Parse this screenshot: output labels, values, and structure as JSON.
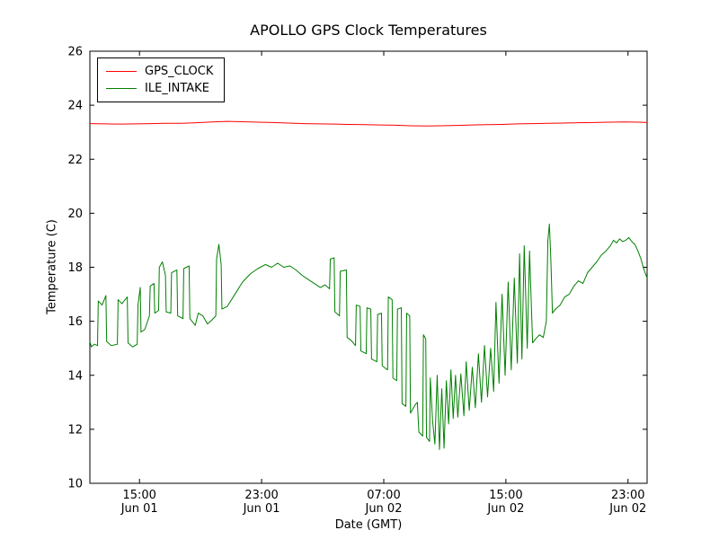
{
  "figure": {
    "title": "APOLLO GPS Clock Temperatures",
    "xlabel": "Date (GMT)",
    "ylabel": "Temperature (C)"
  },
  "chart_data": {
    "type": "line",
    "title": "APOLLO GPS Clock Temperatures",
    "xlabel": "Date (GMT)",
    "ylabel": "Temperature (C)",
    "xlim": [
      0,
      36.5
    ],
    "ylim": [
      10,
      26
    ],
    "grid": false,
    "legend_position": "upper left",
    "yticks": [
      10,
      12,
      14,
      16,
      18,
      20,
      22,
      24,
      26
    ],
    "xticks": [
      {
        "pos": 3.25,
        "time": "15:00",
        "date": "Jun 01"
      },
      {
        "pos": 11.25,
        "time": "23:00",
        "date": "Jun 01"
      },
      {
        "pos": 19.25,
        "time": "07:00",
        "date": "Jun 02"
      },
      {
        "pos": 27.25,
        "time": "15:00",
        "date": "Jun 02"
      },
      {
        "pos": 35.25,
        "time": "23:00",
        "date": "Jun 02"
      }
    ],
    "series": [
      {
        "name": "GPS_CLOCK",
        "color": "#ff0000",
        "points": [
          [
            0,
            23.32
          ],
          [
            1,
            23.31
          ],
          [
            2,
            23.3
          ],
          [
            3,
            23.31
          ],
          [
            4,
            23.32
          ],
          [
            5,
            23.33
          ],
          [
            6,
            23.33
          ],
          [
            7,
            23.35
          ],
          [
            8,
            23.38
          ],
          [
            9,
            23.4
          ],
          [
            10,
            23.39
          ],
          [
            11,
            23.37
          ],
          [
            12,
            23.36
          ],
          [
            13,
            23.34
          ],
          [
            14,
            23.32
          ],
          [
            15,
            23.31
          ],
          [
            16,
            23.3
          ],
          [
            17,
            23.29
          ],
          [
            18,
            23.28
          ],
          [
            19,
            23.27
          ],
          [
            20,
            23.26
          ],
          [
            21,
            23.24
          ],
          [
            22,
            23.23
          ],
          [
            23,
            23.24
          ],
          [
            24,
            23.25
          ],
          [
            25,
            23.27
          ],
          [
            26,
            23.28
          ],
          [
            27,
            23.29
          ],
          [
            28,
            23.31
          ],
          [
            29,
            23.32
          ],
          [
            30,
            23.33
          ],
          [
            31,
            23.34
          ],
          [
            32,
            23.35
          ],
          [
            33,
            23.36
          ],
          [
            34,
            23.37
          ],
          [
            35,
            23.38
          ],
          [
            36,
            23.37
          ],
          [
            36.5,
            23.36
          ]
        ]
      },
      {
        "name": "ILE_INTAKE",
        "color": "#008000",
        "points": [
          [
            0.0,
            15.25
          ],
          [
            0.1,
            15.05
          ],
          [
            0.3,
            15.15
          ],
          [
            0.5,
            15.1
          ],
          [
            0.55,
            16.75
          ],
          [
            0.8,
            16.6
          ],
          [
            1.05,
            16.95
          ],
          [
            1.1,
            15.25
          ],
          [
            1.4,
            15.1
          ],
          [
            1.8,
            15.15
          ],
          [
            1.85,
            16.8
          ],
          [
            2.1,
            16.65
          ],
          [
            2.45,
            16.9
          ],
          [
            2.5,
            15.2
          ],
          [
            2.8,
            15.05
          ],
          [
            3.1,
            15.15
          ],
          [
            3.15,
            16.6
          ],
          [
            3.3,
            17.25
          ],
          [
            3.35,
            15.6
          ],
          [
            3.6,
            15.7
          ],
          [
            3.9,
            16.2
          ],
          [
            3.95,
            17.3
          ],
          [
            4.2,
            17.4
          ],
          [
            4.25,
            16.3
          ],
          [
            4.5,
            16.4
          ],
          [
            4.55,
            18.0
          ],
          [
            4.75,
            18.2
          ],
          [
            4.95,
            17.7
          ],
          [
            5.0,
            16.35
          ],
          [
            5.3,
            16.3
          ],
          [
            5.35,
            17.8
          ],
          [
            5.7,
            17.9
          ],
          [
            5.75,
            16.2
          ],
          [
            6.1,
            16.1
          ],
          [
            6.15,
            17.95
          ],
          [
            6.5,
            18.05
          ],
          [
            6.55,
            16.1
          ],
          [
            6.9,
            15.85
          ],
          [
            7.1,
            16.3
          ],
          [
            7.4,
            16.2
          ],
          [
            7.7,
            15.9
          ],
          [
            8.0,
            16.05
          ],
          [
            8.25,
            16.2
          ],
          [
            8.3,
            18.3
          ],
          [
            8.45,
            18.85
          ],
          [
            8.6,
            18.1
          ],
          [
            8.65,
            16.45
          ],
          [
            9.0,
            16.55
          ],
          [
            9.5,
            17.0
          ],
          [
            10.0,
            17.45
          ],
          [
            10.5,
            17.75
          ],
          [
            11.0,
            17.95
          ],
          [
            11.5,
            18.1
          ],
          [
            11.9,
            18.0
          ],
          [
            12.3,
            18.15
          ],
          [
            12.7,
            18.0
          ],
          [
            13.1,
            18.05
          ],
          [
            13.5,
            17.9
          ],
          [
            13.9,
            17.7
          ],
          [
            14.3,
            17.55
          ],
          [
            14.7,
            17.4
          ],
          [
            15.1,
            17.25
          ],
          [
            15.4,
            17.35
          ],
          [
            15.7,
            17.2
          ],
          [
            15.75,
            18.3
          ],
          [
            16.0,
            18.35
          ],
          [
            16.05,
            16.35
          ],
          [
            16.35,
            16.2
          ],
          [
            16.4,
            17.85
          ],
          [
            16.8,
            17.9
          ],
          [
            16.85,
            15.4
          ],
          [
            17.1,
            15.3
          ],
          [
            17.4,
            15.1
          ],
          [
            17.45,
            16.6
          ],
          [
            17.7,
            16.55
          ],
          [
            17.75,
            14.9
          ],
          [
            18.1,
            14.8
          ],
          [
            18.15,
            16.5
          ],
          [
            18.4,
            16.45
          ],
          [
            18.45,
            14.6
          ],
          [
            18.8,
            14.5
          ],
          [
            18.85,
            16.25
          ],
          [
            19.1,
            16.3
          ],
          [
            19.15,
            14.35
          ],
          [
            19.5,
            14.2
          ],
          [
            19.55,
            16.9
          ],
          [
            19.8,
            16.8
          ],
          [
            19.85,
            13.9
          ],
          [
            20.1,
            13.8
          ],
          [
            20.15,
            16.45
          ],
          [
            20.4,
            16.5
          ],
          [
            20.45,
            12.95
          ],
          [
            20.7,
            12.85
          ],
          [
            20.75,
            16.3
          ],
          [
            20.95,
            16.2
          ],
          [
            21.0,
            12.6
          ],
          [
            21.3,
            12.9
          ],
          [
            21.45,
            13.0
          ],
          [
            21.55,
            11.9
          ],
          [
            21.8,
            11.75
          ],
          [
            21.85,
            15.5
          ],
          [
            22.0,
            15.35
          ],
          [
            22.05,
            11.7
          ],
          [
            22.25,
            11.55
          ],
          [
            22.3,
            13.9
          ],
          [
            22.45,
            12.3
          ],
          [
            22.6,
            11.45
          ],
          [
            22.75,
            14.0
          ],
          [
            22.9,
            11.25
          ],
          [
            23.05,
            13.5
          ],
          [
            23.2,
            11.3
          ],
          [
            23.35,
            13.8
          ],
          [
            23.5,
            12.2
          ],
          [
            23.65,
            14.2
          ],
          [
            23.8,
            12.4
          ],
          [
            23.95,
            14.0
          ],
          [
            24.1,
            12.45
          ],
          [
            24.3,
            14.05
          ],
          [
            24.5,
            12.5
          ],
          [
            24.65,
            14.5
          ],
          [
            24.85,
            12.7
          ],
          [
            25.05,
            14.3
          ],
          [
            25.25,
            12.8
          ],
          [
            25.45,
            14.8
          ],
          [
            25.65,
            13.0
          ],
          [
            25.85,
            15.1
          ],
          [
            26.05,
            13.2
          ],
          [
            26.25,
            15.0
          ],
          [
            26.45,
            13.4
          ],
          [
            26.6,
            16.7
          ],
          [
            26.8,
            13.7
          ],
          [
            27.0,
            17.0
          ],
          [
            27.2,
            14.0
          ],
          [
            27.4,
            17.45
          ],
          [
            27.6,
            14.2
          ],
          [
            27.8,
            17.6
          ],
          [
            28.0,
            14.45
          ],
          [
            28.15,
            18.5
          ],
          [
            28.3,
            14.6
          ],
          [
            28.45,
            18.8
          ],
          [
            28.65,
            15.0
          ],
          [
            28.8,
            18.6
          ],
          [
            29.0,
            15.2
          ],
          [
            29.2,
            15.35
          ],
          [
            29.45,
            15.5
          ],
          [
            29.7,
            15.4
          ],
          [
            29.9,
            16.0
          ],
          [
            30.0,
            19.0
          ],
          [
            30.1,
            19.6
          ],
          [
            30.2,
            18.2
          ],
          [
            30.3,
            16.3
          ],
          [
            30.5,
            16.45
          ],
          [
            30.8,
            16.6
          ],
          [
            31.1,
            16.9
          ],
          [
            31.4,
            17.0
          ],
          [
            31.7,
            17.3
          ],
          [
            32.0,
            17.5
          ],
          [
            32.3,
            17.4
          ],
          [
            32.6,
            17.8
          ],
          [
            32.9,
            18.0
          ],
          [
            33.2,
            18.2
          ],
          [
            33.5,
            18.45
          ],
          [
            33.8,
            18.6
          ],
          [
            34.1,
            18.8
          ],
          [
            34.3,
            19.0
          ],
          [
            34.5,
            18.9
          ],
          [
            34.7,
            19.05
          ],
          [
            34.9,
            18.95
          ],
          [
            35.1,
            19.0
          ],
          [
            35.3,
            19.1
          ],
          [
            35.5,
            18.95
          ],
          [
            35.7,
            18.85
          ],
          [
            35.9,
            18.6
          ],
          [
            36.1,
            18.3
          ],
          [
            36.3,
            17.9
          ],
          [
            36.5,
            17.6
          ]
        ]
      }
    ]
  }
}
